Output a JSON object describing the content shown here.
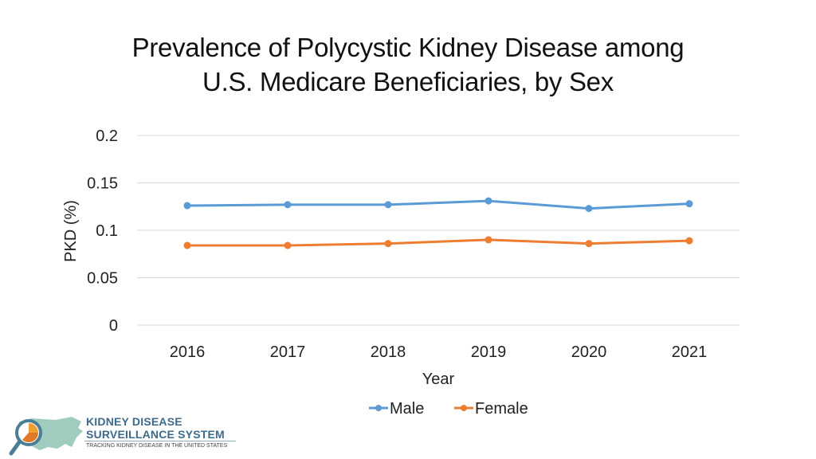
{
  "title_lines": [
    "Prevalence of Polycystic Kidney Disease among",
    "U.S. Medicare Beneficiaries, by Sex"
  ],
  "colors": {
    "male": "#5b9bd5",
    "female": "#ed7d31",
    "grid": "#d9d9d9"
  },
  "chart_data": {
    "type": "line",
    "title": "Prevalence of Polycystic Kidney Disease among U.S. Medicare Beneficiaries, by Sex",
    "xlabel": "Year",
    "ylabel": "PKD (%)",
    "categories": [
      "2016",
      "2017",
      "2018",
      "2019",
      "2020",
      "2021"
    ],
    "ylim": [
      0,
      0.2
    ],
    "yticks": [
      "0",
      "0.05",
      "0.1",
      "0.15",
      "0.2"
    ],
    "ytick_values": [
      0,
      0.05,
      0.1,
      0.15,
      0.2
    ],
    "grid": true,
    "legend_position": "bottom",
    "series": [
      {
        "name": "Male",
        "values": [
          0.126,
          0.127,
          0.127,
          0.131,
          0.123,
          0.128
        ]
      },
      {
        "name": "Female",
        "values": [
          0.084,
          0.084,
          0.086,
          0.09,
          0.086,
          0.089
        ]
      }
    ]
  },
  "logo": {
    "line1": "KIDNEY DISEASE",
    "line2": "SURVEILLANCE SYSTEM",
    "line3": "TRACKING KIDNEY DISEASE IN THE UNITED STATES"
  }
}
